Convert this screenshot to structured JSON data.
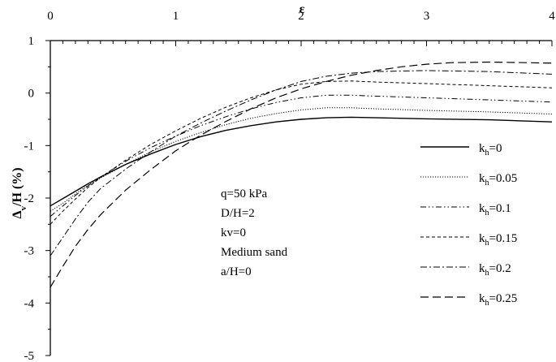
{
  "chart_data": {
    "type": "line",
    "xlabel": "ε",
    "ylabel": "Δ",
    "ylabel_sub": "v",
    "ylabel_tail": "/H (%)",
    "xlim": [
      0,
      4
    ],
    "ylim": [
      -5,
      1
    ],
    "x_ticks": [
      0,
      1,
      2,
      3,
      4
    ],
    "y_ticks": [
      1,
      0,
      -1,
      -2,
      -3,
      -4,
      -5
    ],
    "x_ticks_position": "top",
    "grid": false,
    "legend_position": "right",
    "annotations": [
      "q=50 kPa",
      "D/H=2",
      "kv=0",
      "Medium sand",
      "a/H=0"
    ],
    "series": [
      {
        "name": "kh=0",
        "label_main": "k",
        "label_sub": "h",
        "label_tail": "=0",
        "dash": "solid",
        "width": 1.4,
        "x": [
          0,
          0.05,
          0.1,
          0.2,
          0.3,
          0.4,
          0.6,
          0.8,
          1.0,
          1.2,
          1.4,
          1.6,
          1.8,
          2.0,
          2.2,
          2.4,
          2.6,
          3.0,
          3.5,
          4.0
        ],
        "y": [
          -2.15,
          -2.08,
          -2.01,
          -1.87,
          -1.73,
          -1.6,
          -1.36,
          -1.16,
          -0.98,
          -0.83,
          -0.71,
          -0.62,
          -0.55,
          -0.5,
          -0.47,
          -0.46,
          -0.47,
          -0.49,
          -0.51,
          -0.55
        ]
      },
      {
        "name": "kh=0.05",
        "label_main": "k",
        "label_sub": "h",
        "label_tail": "=0.05",
        "dash": "dotted",
        "width": 1.0,
        "x": [
          0,
          0.1,
          0.2,
          0.3,
          0.4,
          0.6,
          0.8,
          1.0,
          1.2,
          1.4,
          1.6,
          1.8,
          2.0,
          2.2,
          2.4,
          2.6,
          3.0,
          3.5,
          4.0
        ],
        "y": [
          -2.25,
          -2.1,
          -1.92,
          -1.76,
          -1.62,
          -1.36,
          -1.12,
          -0.92,
          -0.75,
          -0.6,
          -0.48,
          -0.39,
          -0.32,
          -0.28,
          -0.28,
          -0.3,
          -0.33,
          -0.36,
          -0.4
        ]
      },
      {
        "name": "kh=0.1",
        "label_main": "k",
        "label_sub": "h",
        "label_tail": "=0.1",
        "dash": "dashdotdot",
        "width": 1.0,
        "x": [
          0,
          0.1,
          0.2,
          0.3,
          0.4,
          0.6,
          0.8,
          1.0,
          1.2,
          1.4,
          1.6,
          1.8,
          2.0,
          2.2,
          2.4,
          2.6,
          3.0,
          3.5,
          4.0
        ],
        "y": [
          -2.35,
          -2.15,
          -1.95,
          -1.77,
          -1.6,
          -1.3,
          -1.04,
          -0.82,
          -0.62,
          -0.45,
          -0.3,
          -0.18,
          -0.09,
          -0.04,
          -0.04,
          -0.06,
          -0.09,
          -0.13,
          -0.17
        ]
      },
      {
        "name": "kh=0.15",
        "label_main": "k",
        "label_sub": "h",
        "label_tail": "=0.15",
        "dash": "shortdash",
        "width": 1.0,
        "x": [
          0,
          0.1,
          0.2,
          0.3,
          0.4,
          0.6,
          0.8,
          1.0,
          1.2,
          1.4,
          1.6,
          1.8,
          2.0,
          2.2,
          2.4,
          2.6,
          3.0,
          3.5,
          4.0
        ],
        "y": [
          -2.5,
          -2.25,
          -2.02,
          -1.8,
          -1.61,
          -1.28,
          -0.98,
          -0.72,
          -0.48,
          -0.27,
          -0.09,
          0.06,
          0.17,
          0.22,
          0.23,
          0.21,
          0.18,
          0.14,
          0.1
        ]
      },
      {
        "name": "kh=0.2",
        "label_main": "k",
        "label_sub": "h",
        "label_tail": "=0.2",
        "dash": "dashdot",
        "width": 1.0,
        "x": [
          0,
          0.1,
          0.2,
          0.3,
          0.4,
          0.6,
          0.8,
          1.0,
          1.2,
          1.4,
          1.6,
          1.8,
          2.0,
          2.2,
          2.4,
          2.6,
          3.0,
          3.5,
          4.0
        ],
        "y": [
          -3.1,
          -2.75,
          -2.4,
          -2.08,
          -1.82,
          -1.45,
          -1.12,
          -0.82,
          -0.57,
          -0.34,
          -0.13,
          0.06,
          0.22,
          0.32,
          0.38,
          0.41,
          0.43,
          0.41,
          0.36
        ]
      },
      {
        "name": "kh=0.25",
        "label_main": "k",
        "label_sub": "h",
        "label_tail": "=0.25",
        "dash": "longdash",
        "width": 1.2,
        "x": [
          0,
          0.1,
          0.2,
          0.3,
          0.4,
          0.6,
          0.8,
          1.0,
          1.2,
          1.4,
          1.6,
          1.8,
          2.0,
          2.2,
          2.4,
          2.6,
          2.8,
          3.0,
          3.2,
          3.5,
          3.8,
          4.0
        ],
        "y": [
          -3.7,
          -3.3,
          -2.92,
          -2.6,
          -2.32,
          -1.85,
          -1.46,
          -1.1,
          -0.8,
          -0.54,
          -0.3,
          -0.09,
          0.08,
          0.22,
          0.34,
          0.43,
          0.5,
          0.55,
          0.58,
          0.59,
          0.58,
          0.57
        ]
      }
    ]
  }
}
